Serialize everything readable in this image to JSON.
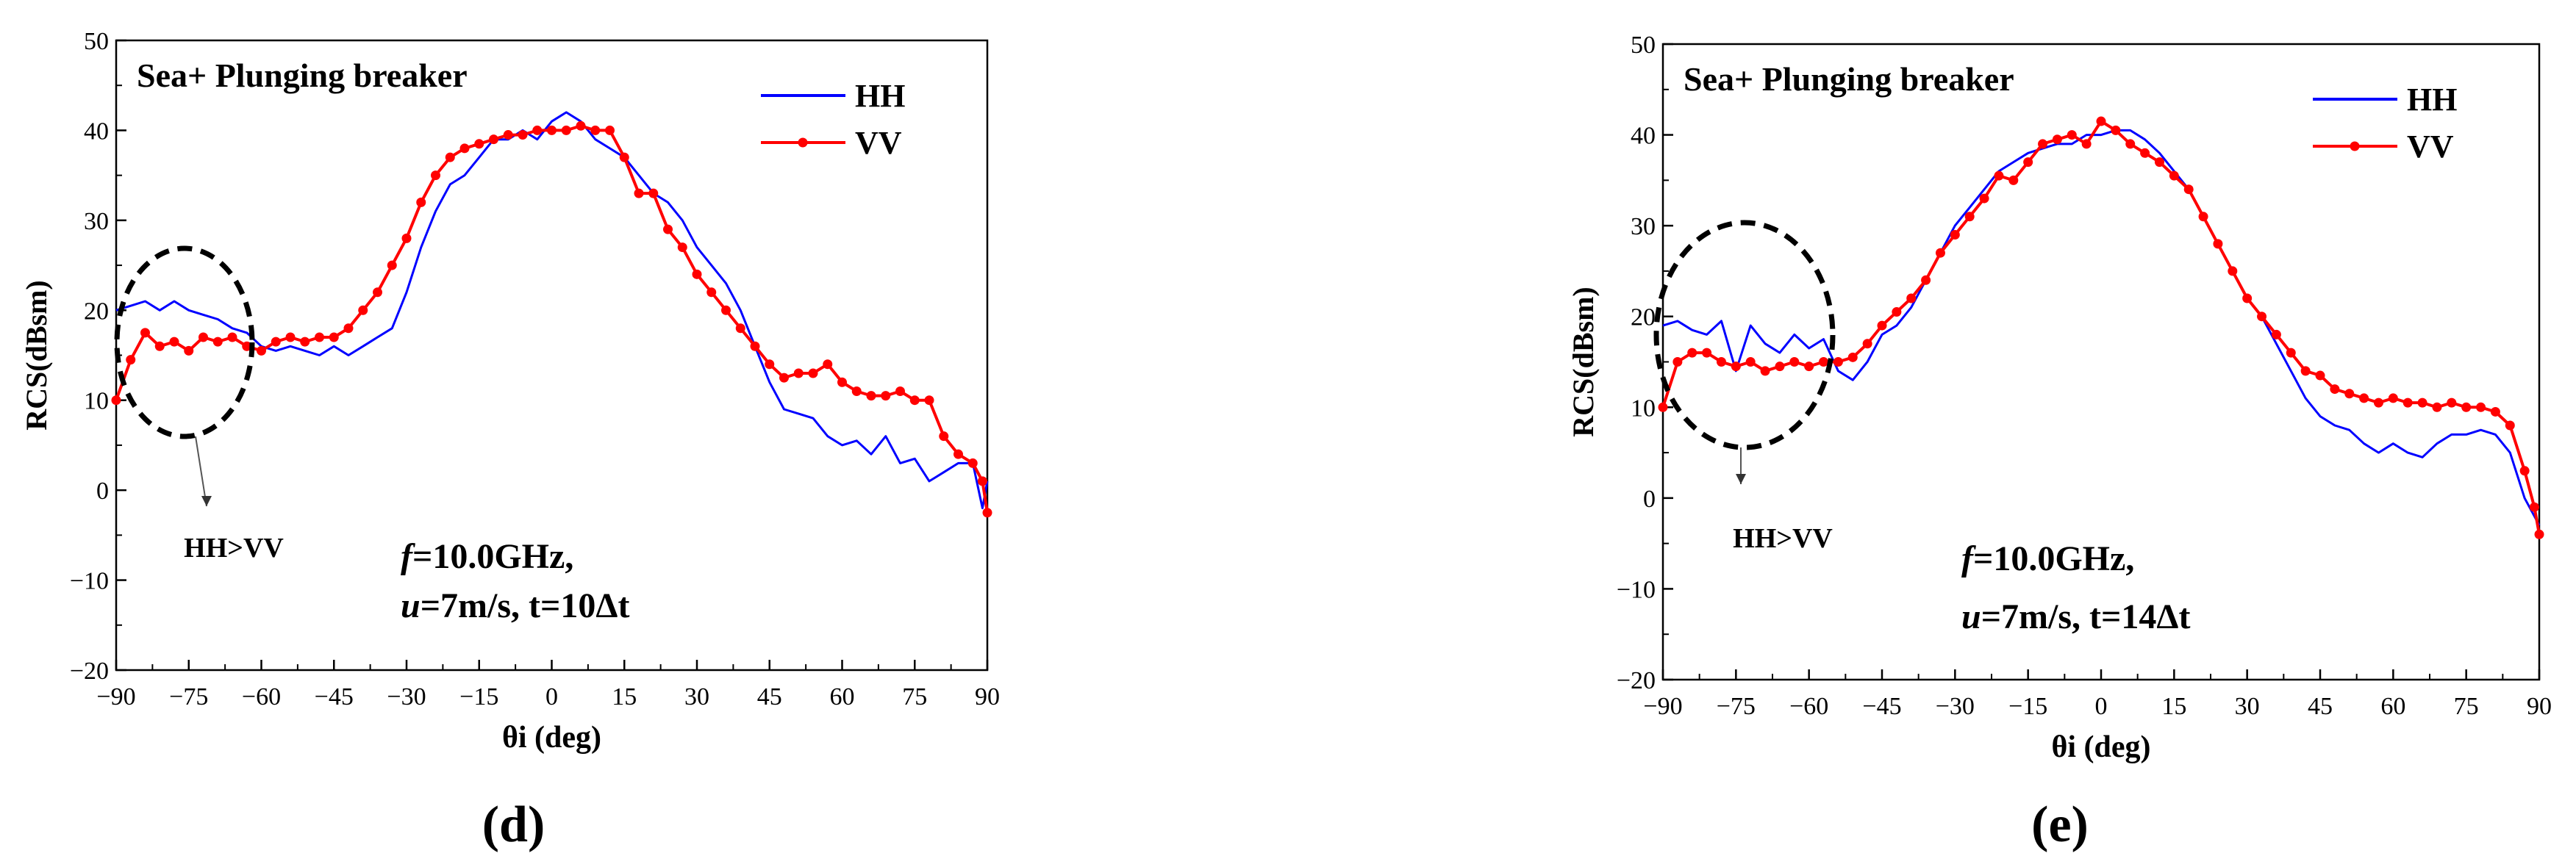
{
  "chart_data": [
    {
      "type": "line",
      "panel_label": "(d)",
      "title": "Sea+ Plunging breaker",
      "xlabel": "θi (deg)",
      "ylabel": "RCS(dBsm)",
      "xlim": [
        -90,
        90
      ],
      "ylim": [
        -20,
        50
      ],
      "xticks": [
        -90,
        -75,
        -60,
        -45,
        -30,
        -15,
        0,
        15,
        30,
        45,
        60,
        75,
        90
      ],
      "yticks": [
        -20,
        -10,
        0,
        10,
        20,
        30,
        40,
        50
      ],
      "grid": false,
      "legend_position": "top-right",
      "annotation_line1": "f=10.0GHz,",
      "annotation_line2": "u=7m/s, t=10Δt",
      "ellipse_note": "HH>VV",
      "series": [
        {
          "name": "HH",
          "color": "#0000ff",
          "markers": false,
          "x": [
            -90,
            -87,
            -84,
            -81,
            -78,
            -75,
            -72,
            -69,
            -66,
            -63,
            -60,
            -57,
            -54,
            -51,
            -48,
            -45,
            -42,
            -39,
            -36,
            -33,
            -30,
            -27,
            -24,
            -21,
            -18,
            -15,
            -12,
            -9,
            -6,
            -3,
            0,
            3,
            6,
            9,
            12,
            15,
            18,
            21,
            24,
            27,
            30,
            33,
            36,
            39,
            42,
            45,
            48,
            51,
            54,
            57,
            60,
            63,
            66,
            69,
            72,
            75,
            78,
            81,
            84,
            87,
            89,
            90
          ],
          "y": [
            20,
            20.5,
            21,
            20,
            21,
            20,
            19.5,
            19,
            18,
            17.5,
            16,
            15.5,
            16,
            15.5,
            15,
            16,
            15,
            16,
            17,
            18,
            22,
            27,
            31,
            34,
            35,
            37,
            39,
            39,
            40,
            39,
            41,
            42,
            41,
            39,
            38,
            37,
            35,
            33,
            32,
            30,
            27,
            25,
            23,
            20,
            16,
            12,
            9,
            8.5,
            8,
            6,
            5,
            5.5,
            4,
            6,
            3,
            3.5,
            1,
            2,
            3,
            3,
            -2,
            1
          ]
        },
        {
          "name": "VV",
          "color": "#ff0000",
          "markers": true,
          "x": [
            -90,
            -87,
            -84,
            -81,
            -78,
            -75,
            -72,
            -69,
            -66,
            -63,
            -60,
            -57,
            -54,
            -51,
            -48,
            -45,
            -42,
            -39,
            -36,
            -33,
            -30,
            -27,
            -24,
            -21,
            -18,
            -15,
            -12,
            -9,
            -6,
            -3,
            0,
            3,
            6,
            9,
            12,
            15,
            18,
            21,
            24,
            27,
            30,
            33,
            36,
            39,
            42,
            45,
            48,
            51,
            54,
            57,
            60,
            63,
            66,
            69,
            72,
            75,
            78,
            81,
            84,
            87,
            89,
            90
          ],
          "y": [
            10,
            14.5,
            17.5,
            16,
            16.5,
            15.5,
            17,
            16.5,
            17,
            16,
            15.5,
            16.5,
            17,
            16.5,
            17,
            17,
            18,
            20,
            22,
            25,
            28,
            32,
            35,
            37,
            38,
            38.5,
            39,
            39.5,
            39.5,
            40,
            40,
            40,
            40.5,
            40,
            40,
            37,
            33,
            33,
            29,
            27,
            24,
            22,
            20,
            18,
            16,
            14,
            12.5,
            13,
            13,
            14,
            12,
            11,
            10.5,
            10.5,
            11,
            10,
            10,
            6,
            4,
            3,
            1,
            -2.5
          ]
        }
      ]
    },
    {
      "type": "line",
      "panel_label": "(e)",
      "title": "Sea+ Plunging breaker",
      "xlabel": "θi (deg)",
      "ylabel": "RCS(dBsm)",
      "xlim": [
        -90,
        90
      ],
      "ylim": [
        -20,
        50
      ],
      "xticks": [
        -90,
        -75,
        -60,
        -45,
        -30,
        -15,
        0,
        15,
        30,
        45,
        60,
        75,
        90
      ],
      "yticks": [
        -20,
        -10,
        0,
        10,
        20,
        30,
        40,
        50
      ],
      "grid": false,
      "legend_position": "top-right",
      "annotation_line1": "f=10.0GHz,",
      "annotation_line2": "u=7m/s, t=14Δt",
      "ellipse_note": "HH>VV",
      "series": [
        {
          "name": "HH",
          "color": "#0000ff",
          "markers": false,
          "x": [
            -90,
            -87,
            -84,
            -81,
            -78,
            -75,
            -72,
            -69,
            -66,
            -63,
            -60,
            -57,
            -54,
            -51,
            -48,
            -45,
            -42,
            -39,
            -36,
            -33,
            -30,
            -27,
            -24,
            -21,
            -18,
            -15,
            -12,
            -9,
            -6,
            -3,
            0,
            3,
            6,
            9,
            12,
            15,
            18,
            21,
            24,
            27,
            30,
            33,
            36,
            39,
            42,
            45,
            48,
            51,
            54,
            57,
            60,
            63,
            66,
            69,
            72,
            75,
            78,
            81,
            84,
            87,
            89,
            90
          ],
          "y": [
            19,
            19.5,
            18.5,
            18,
            19.5,
            14,
            19,
            17,
            16,
            18,
            16.5,
            17.5,
            14,
            13,
            15,
            18,
            19,
            21,
            24,
            27,
            30,
            32,
            34,
            36,
            37,
            38,
            38.5,
            39,
            39,
            40,
            40,
            40.5,
            40.5,
            39.5,
            38,
            36,
            34,
            31,
            28,
            25,
            22,
            20,
            17,
            14,
            11,
            9,
            8,
            7.5,
            6,
            5,
            6,
            5,
            4.5,
            6,
            7,
            7,
            7.5,
            7,
            5,
            0,
            -2,
            -3
          ]
        },
        {
          "name": "VV",
          "color": "#ff0000",
          "markers": true,
          "x": [
            -90,
            -87,
            -84,
            -81,
            -78,
            -75,
            -72,
            -69,
            -66,
            -63,
            -60,
            -57,
            -54,
            -51,
            -48,
            -45,
            -42,
            -39,
            -36,
            -33,
            -30,
            -27,
            -24,
            -21,
            -18,
            -15,
            -12,
            -9,
            -6,
            -3,
            0,
            3,
            6,
            9,
            12,
            15,
            18,
            21,
            24,
            27,
            30,
            33,
            36,
            39,
            42,
            45,
            48,
            51,
            54,
            57,
            60,
            63,
            66,
            69,
            72,
            75,
            78,
            81,
            84,
            87,
            89,
            90
          ],
          "y": [
            10,
            15,
            16,
            16,
            15,
            14.5,
            15,
            14,
            14.5,
            15,
            14.5,
            15,
            15,
            15.5,
            17,
            19,
            20.5,
            22,
            24,
            27,
            29,
            31,
            33,
            35.5,
            35,
            37,
            39,
            39.5,
            40,
            39,
            41.5,
            40.5,
            39,
            38,
            37,
            35.5,
            34,
            31,
            28,
            25,
            22,
            20,
            18,
            16,
            14,
            13.5,
            12,
            11.5,
            11,
            10.5,
            11,
            10.5,
            10.5,
            10,
            10.5,
            10,
            10,
            9.5,
            8,
            3,
            -1,
            -4
          ]
        }
      ]
    }
  ]
}
